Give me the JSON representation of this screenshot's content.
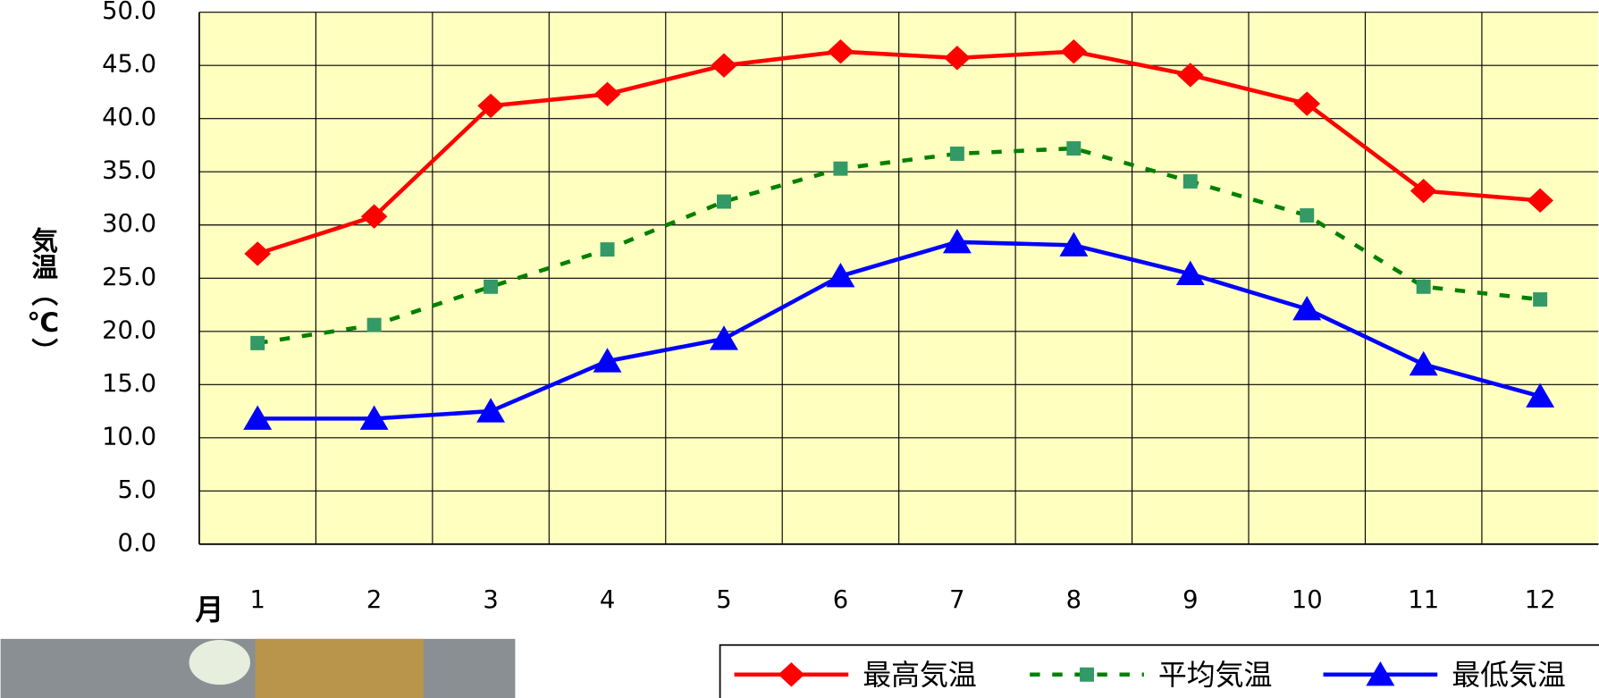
{
  "chart_data": {
    "type": "line",
    "y_label": "気温（℃）",
    "x_label": "月",
    "categories": [
      "1",
      "2",
      "3",
      "4",
      "5",
      "6",
      "7",
      "8",
      "9",
      "10",
      "11",
      "12"
    ],
    "series": [
      {
        "name": "最高気温",
        "color": "#ff0000",
        "marker": "diamond",
        "dash": false,
        "values": [
          27.3,
          30.8,
          41.2,
          42.3,
          45.0,
          46.3,
          45.7,
          46.3,
          44.1,
          41.4,
          33.2,
          32.3
        ]
      },
      {
        "name": "平均気温",
        "color": "#008000",
        "marker_color": "#339966",
        "marker": "square",
        "dash": true,
        "values": [
          18.9,
          20.6,
          24.2,
          27.7,
          32.2,
          35.3,
          36.7,
          37.2,
          34.1,
          30.9,
          24.2,
          23.0
        ]
      },
      {
        "name": "最低気温",
        "color": "#0000ff",
        "marker": "triangle",
        "dash": false,
        "values": [
          11.8,
          11.8,
          12.5,
          17.2,
          19.3,
          25.2,
          28.4,
          28.1,
          25.4,
          22.1,
          16.9,
          13.9
        ]
      }
    ],
    "ylim": [
      0,
      50
    ],
    "yticks": [
      {
        "value": 0,
        "label": "0.0"
      },
      {
        "value": 5,
        "label": "5.0"
      },
      {
        "value": 10,
        "label": "10.0"
      },
      {
        "value": 15,
        "label": "15.0"
      },
      {
        "value": 20,
        "label": "20.0"
      },
      {
        "value": 25,
        "label": "25.0"
      },
      {
        "value": 30,
        "label": "30.0"
      },
      {
        "value": 35,
        "label": "35.0"
      },
      {
        "value": 40,
        "label": "40.0"
      },
      {
        "value": 45,
        "label": "45.0"
      },
      {
        "value": 50,
        "label": "50.0"
      }
    ],
    "grid": true,
    "plot_background": "#ffffc0"
  }
}
